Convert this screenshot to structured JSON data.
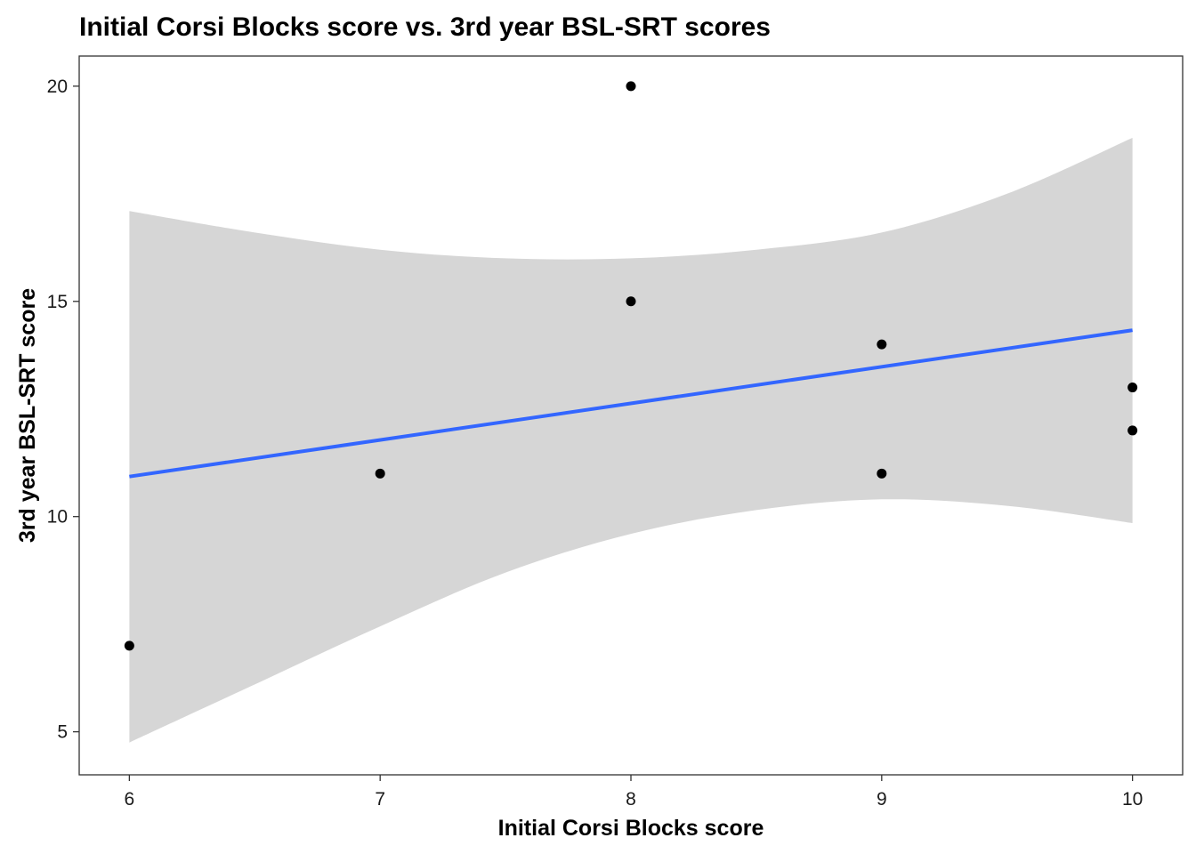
{
  "chart_data": {
    "type": "scatter",
    "title": "Initial Corsi Blocks score vs. 3rd year BSL-SRT scores",
    "xlabel": "Initial Corsi Blocks score",
    "ylabel": "3rd year BSL-SRT score",
    "xlim": [
      5.8,
      10.2
    ],
    "ylim": [
      4.0,
      20.7
    ],
    "x_ticks": [
      6,
      7,
      8,
      9,
      10
    ],
    "y_ticks": [
      5,
      10,
      15,
      20
    ],
    "grid": false,
    "legend": "none",
    "points": [
      {
        "x": 6,
        "y": 7
      },
      {
        "x": 7,
        "y": 11
      },
      {
        "x": 8,
        "y": 20
      },
      {
        "x": 8,
        "y": 15
      },
      {
        "x": 9,
        "y": 14
      },
      {
        "x": 9,
        "y": 11
      },
      {
        "x": 10,
        "y": 13
      },
      {
        "x": 10,
        "y": 12
      }
    ],
    "fit_line": {
      "method": "linear regression",
      "x": [
        6,
        10
      ],
      "y": [
        10.93,
        14.33
      ]
    },
    "confidence_band": {
      "x": [
        6.0,
        6.5,
        7.0,
        7.5,
        8.0,
        8.5,
        9.0,
        9.5,
        10.0
      ],
      "upper": [
        17.1,
        16.6,
        16.2,
        16.0,
        16.0,
        16.2,
        16.6,
        17.5,
        18.8
      ],
      "lower": [
        4.75,
        6.1,
        7.45,
        8.7,
        9.6,
        10.15,
        10.4,
        10.25,
        9.85
      ]
    },
    "colors": {
      "points": "#000000",
      "fit_line": "#3366ff",
      "band": "#d6d6d6"
    }
  }
}
